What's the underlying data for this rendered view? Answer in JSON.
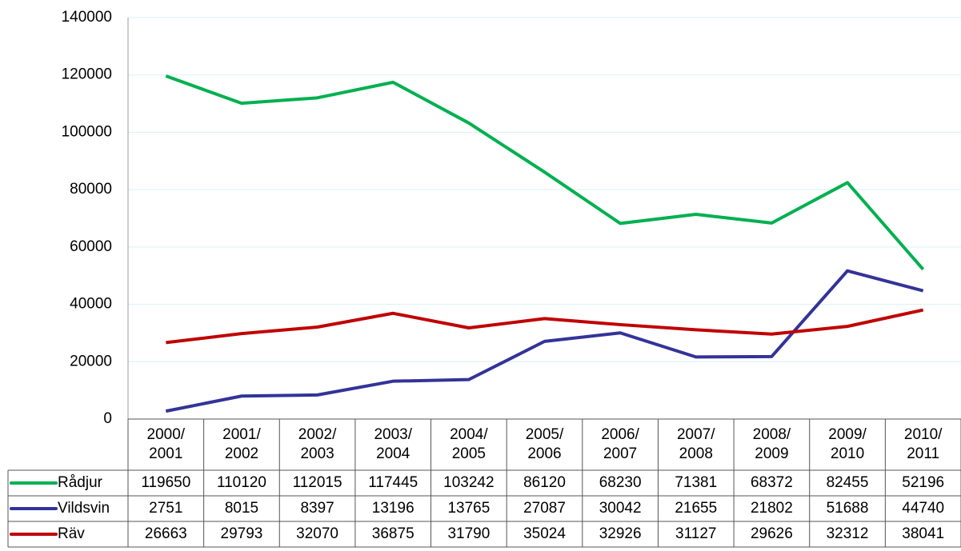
{
  "chart_data": {
    "type": "line",
    "categories": [
      "2000/ 2001",
      "2001/ 2002",
      "2002/ 2003",
      "2003/ 2004",
      "2004/ 2005",
      "2005/ 2006",
      "2006/ 2007",
      "2007/ 2008",
      "2008/ 2009",
      "2009/ 2010",
      "2010/ 2011"
    ],
    "series": [
      {
        "name": "Rådjur",
        "color": "#00b050",
        "values": [
          119650,
          110120,
          112015,
          117445,
          103242,
          86120,
          68230,
          71381,
          68372,
          82455,
          52196
        ]
      },
      {
        "name": "Vildsvin",
        "color": "#333399",
        "values": [
          2751,
          8015,
          8397,
          13196,
          13765,
          27087,
          30042,
          21655,
          21802,
          51688,
          44740
        ]
      },
      {
        "name": "Räv",
        "color": "#c00000",
        "values": [
          26663,
          29793,
          32070,
          36875,
          31790,
          35024,
          32926,
          31127,
          29626,
          32312,
          38041
        ]
      }
    ],
    "ylim": [
      0,
      140000
    ],
    "yticks": [
      0,
      20000,
      40000,
      60000,
      80000,
      100000,
      120000,
      140000
    ],
    "grid": true
  }
}
